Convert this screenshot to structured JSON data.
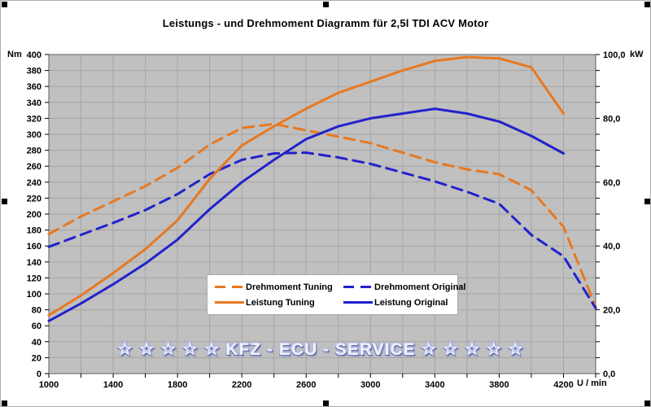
{
  "title": "Leistungs - und Drehmoment Diagramm für 2,5l TDI ACV Motor",
  "watermark": "☆ ☆ ☆ ☆ ☆  KFZ - ECU - SERVICE  ☆ ☆ ☆ ☆ ☆",
  "colors": {
    "tuning_orange": "#E87820",
    "original_blue": "#2222CC",
    "plot_background": "#C0C0C0",
    "gridline": "#A5A5A5",
    "plot_border": "#606060",
    "tick": "#000000"
  },
  "axes": {
    "left_unit": "Nm",
    "right_unit": "kW",
    "x_unit": "U / min",
    "left_range": [
      0,
      400
    ],
    "left_tick_step": 20,
    "left_tick_labels": [
      400,
      380,
      360,
      340,
      320,
      300,
      280,
      260,
      240,
      220,
      200,
      180,
      160,
      140,
      120,
      100,
      80,
      60,
      40,
      20,
      0
    ],
    "right_range_kw": [
      0,
      100
    ],
    "right_tick_labels": [
      "100,0",
      "80,0",
      "60,0",
      "40,0",
      "20,0",
      "0,0"
    ],
    "right_label_positions_kw": [
      100,
      80,
      60,
      40,
      20,
      0
    ],
    "x_range_rpm": [
      1000,
      4400
    ],
    "x_minor_tick_step": 200,
    "x_tick_labels": [
      1000,
      1400,
      1800,
      2200,
      2600,
      3000,
      3400,
      3800,
      4200
    ]
  },
  "legend": {
    "items": [
      {
        "label": "Drehmoment Tuning",
        "style": "dashed",
        "color": "#E87820"
      },
      {
        "label": "Drehmoment Original",
        "style": "dashed",
        "color": "#2222CC"
      },
      {
        "label": "Leistung Tuning",
        "style": "solid",
        "color": "#E87820"
      },
      {
        "label": "Leistung Original",
        "style": "solid",
        "color": "#2222CC"
      }
    ]
  },
  "chart_data": {
    "type": "line",
    "x_label": "U / min",
    "x_rpm": [
      1000,
      1200,
      1400,
      1600,
      1800,
      2000,
      2200,
      2400,
      2600,
      2800,
      3000,
      3200,
      3400,
      3600,
      3800,
      4000,
      4200,
      4400
    ],
    "series": [
      {
        "name": "Drehmoment Tuning",
        "axis": "left",
        "unit": "Nm",
        "style": "dashed",
        "color": "#E87820",
        "values": [
          175,
          197,
          216,
          235,
          258,
          287,
          308,
          313,
          305,
          297,
          289,
          277,
          265,
          256,
          250,
          230,
          184,
          84
        ]
      },
      {
        "name": "Drehmoment Original",
        "axis": "left",
        "unit": "Nm",
        "style": "dashed",
        "color": "#2222CC",
        "values": [
          159,
          174,
          189,
          205,
          225,
          250,
          268,
          276,
          277,
          271,
          263,
          252,
          241,
          228,
          213,
          174,
          147,
          82
        ]
      },
      {
        "name": "Leistung Tuning",
        "axis": "right",
        "unit": "kW",
        "style": "solid",
        "color": "#E87820",
        "values": [
          18.3,
          24.5,
          31.5,
          39,
          48,
          61,
          71.5,
          77.5,
          83,
          88,
          91.5,
          95,
          98,
          99.2,
          98.8,
          96,
          81.5,
          null
        ]
      },
      {
        "name": "Leistung Original",
        "axis": "right",
        "unit": "kW",
        "style": "solid",
        "color": "#2222CC",
        "values": [
          16.5,
          22,
          28,
          34.5,
          42,
          51.5,
          60,
          67,
          73.5,
          77.5,
          80,
          81.5,
          83,
          81.5,
          79,
          74.5,
          69,
          null
        ]
      }
    ],
    "left_ylim": [
      0,
      400
    ],
    "right_ylim_kw": [
      0,
      100
    ],
    "grid": true,
    "legend_position": "inside-bottom-center"
  }
}
